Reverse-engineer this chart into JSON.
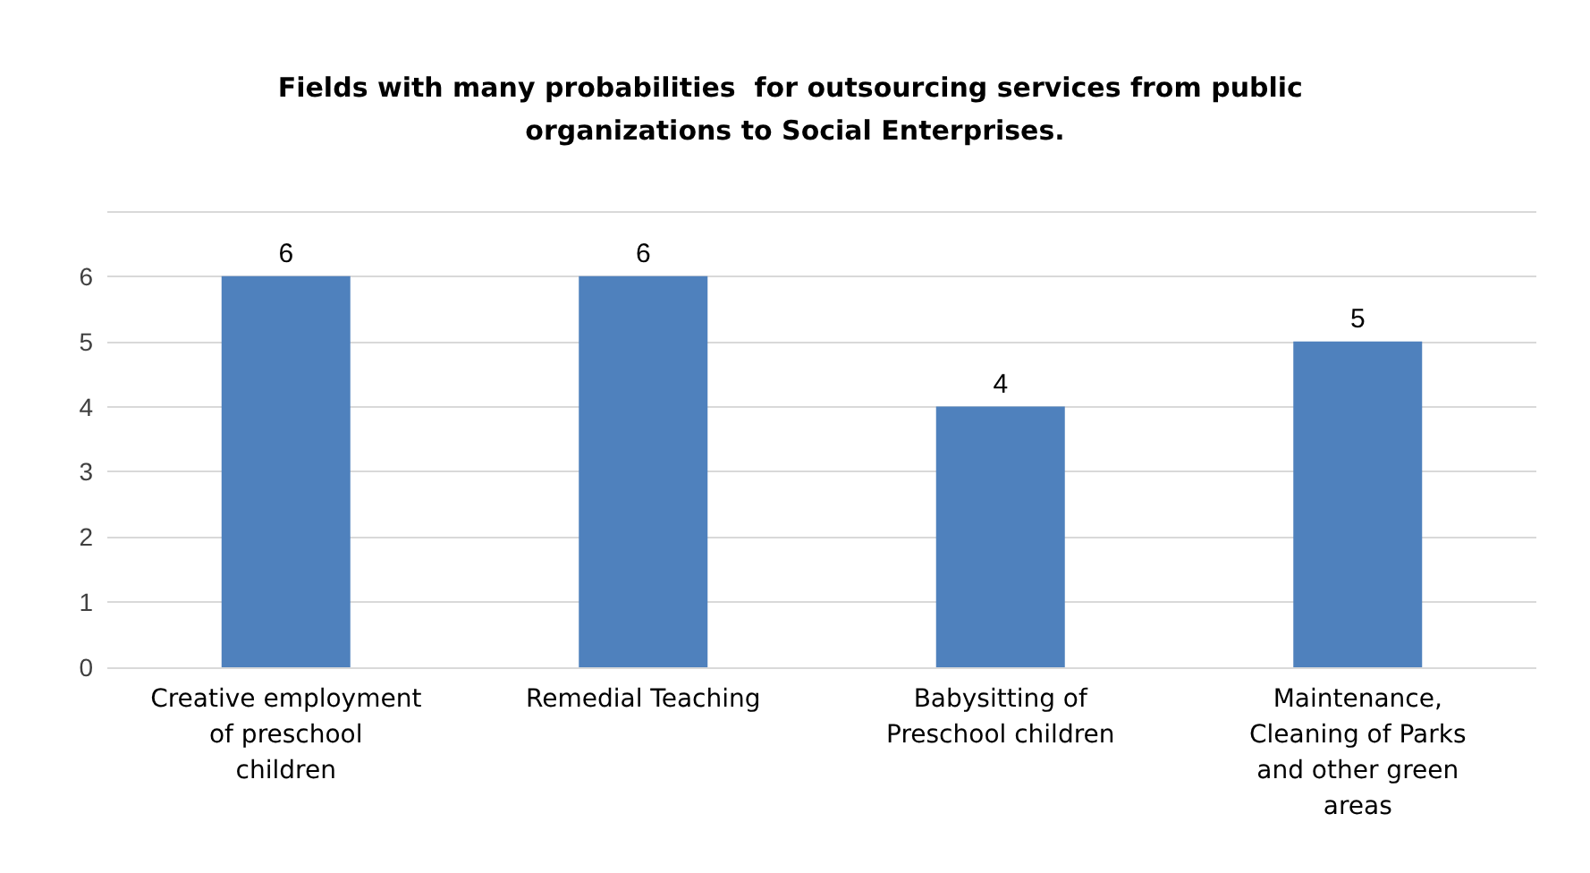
{
  "chart_data": {
    "type": "bar",
    "title": "Fields with many probabilities  for outsourcing services from public organizations to Social Enterprises.",
    "categories": [
      "Creative employment of preschool children",
      "Remedial Teaching",
      "Babysitting of Preschool children",
      "Maintenance, Cleaning of Parks and other green areas"
    ],
    "values": [
      6,
      6,
      4,
      5
    ],
    "color": "#4f81bd",
    "ylim": [
      0,
      7
    ],
    "yticks": [
      0,
      1,
      2,
      3,
      4,
      5,
      6,
      {
        "value": 7,
        "label": null
      }
    ],
    "grid": "y",
    "data_labels": true
  }
}
